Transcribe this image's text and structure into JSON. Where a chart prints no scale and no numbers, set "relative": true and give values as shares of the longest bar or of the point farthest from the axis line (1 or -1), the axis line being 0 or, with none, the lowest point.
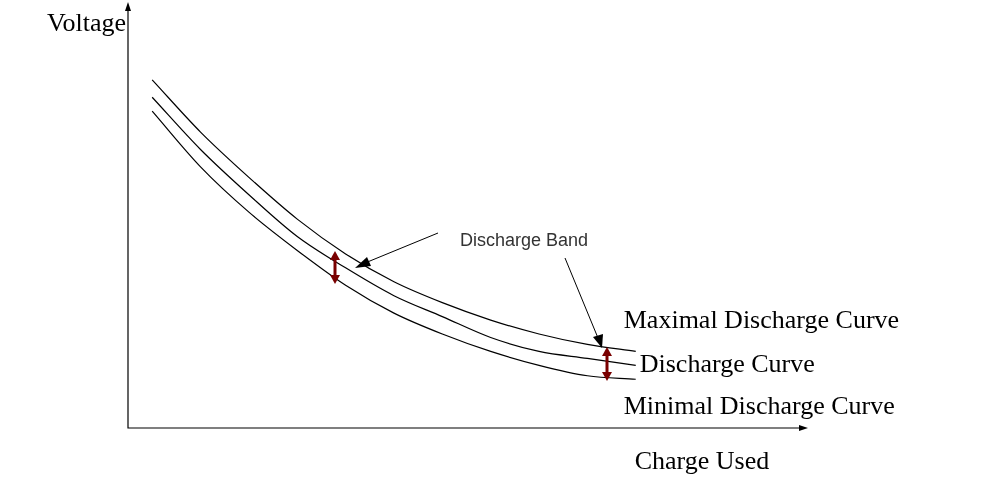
{
  "chart_data": {
    "type": "line",
    "relative": true,
    "xlabel": "Charge Used",
    "ylabel": "Voltage",
    "legend": false,
    "marker": "none",
    "line_style": "solid",
    "categories": [
      null,
      null,
      null,
      null,
      null,
      null,
      null,
      null,
      null,
      null,
      null,
      null,
      null,
      null
    ],
    "series": [
      {
        "name": "Maximal Discharge Curve",
        "color": "#000000",
        "values": [
          1,
          0.85,
          0.72,
          0.6,
          0.5,
          0.42,
          0.36,
          0.31,
          0.27,
          0.24,
          0.22,
          null,
          null,
          null
        ]
      },
      {
        "name": "Discharge Curve",
        "color": "#000000",
        "values": [
          0.95,
          0.8,
          0.67,
          0.55,
          0.46,
          0.38,
          0.32,
          0.26,
          0.22,
          0.2,
          0.18,
          null,
          null,
          null
        ]
      },
      {
        "name": "Minimal Discharge Curve",
        "color": "#000000",
        "values": [
          0.91,
          0.75,
          0.62,
          0.51,
          0.41,
          0.33,
          0.27,
          0.22,
          0.18,
          0.15,
          0.14,
          null,
          null,
          null
        ]
      }
    ],
    "annotations": [
      "Discharge Band"
    ]
  }
}
